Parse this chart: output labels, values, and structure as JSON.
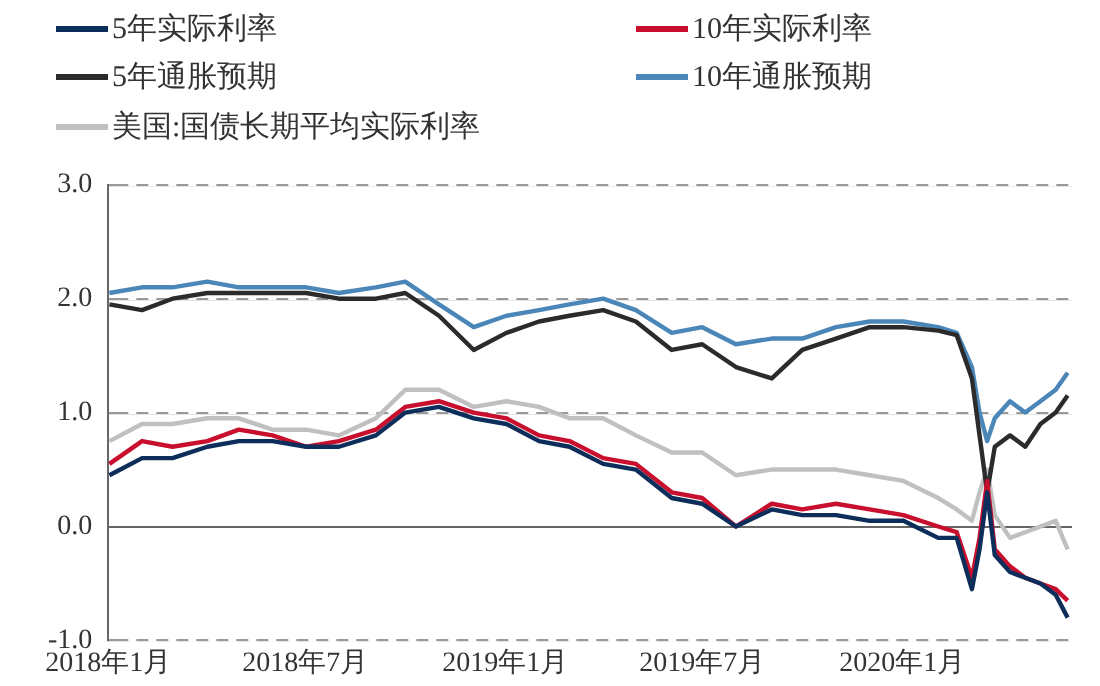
{
  "chart_data": {
    "type": "line",
    "legend": "top",
    "grid": "y",
    "marker": "none",
    "line_style": "solid",
    "x": [
      "2018-01-02",
      "2018-02-01",
      "2018-03-01",
      "2018-04-02",
      "2018-05-01",
      "2018-06-01",
      "2018-07-02",
      "2018-08-01",
      "2018-09-04",
      "2018-10-01",
      "2018-11-01",
      "2018-12-03",
      "2019-01-02",
      "2019-02-01",
      "2019-03-01",
      "2019-04-01",
      "2019-05-01",
      "2019-06-03",
      "2019-07-01",
      "2019-08-01",
      "2019-09-03",
      "2019-10-01",
      "2019-11-01",
      "2019-12-02",
      "2020-01-02",
      "2020-02-03",
      "2020-02-20",
      "2020-03-05",
      "2020-03-12",
      "2020-03-19",
      "2020-03-26",
      "2020-04-09",
      "2020-04-23",
      "2020-05-07",
      "2020-05-21",
      "2020-06-01"
    ],
    "xlim": [
      "2018-01-01",
      "2020-06-05"
    ],
    "xticks": [
      {
        "value": "2018-01-01",
        "label": "2018年1月"
      },
      {
        "value": "2018-07-01",
        "label": "2018年7月"
      },
      {
        "value": "2019-01-01",
        "label": "2019年1月"
      },
      {
        "value": "2019-07-01",
        "label": "2019年7月"
      },
      {
        "value": "2020-01-01",
        "label": "2020年1月"
      }
    ],
    "ylim": [
      -1,
      3
    ],
    "yticks": [
      {
        "value": -1,
        "label": "-1.0"
      },
      {
        "value": 0,
        "label": "0.0"
      },
      {
        "value": 1,
        "label": "1.0"
      },
      {
        "value": 2,
        "label": "2.0"
      },
      {
        "value": 3,
        "label": "3.0"
      }
    ],
    "series": [
      {
        "name": "5年实际利率",
        "color": "#0d2e5a",
        "values": [
          0.45,
          0.6,
          0.6,
          0.7,
          0.75,
          0.75,
          0.7,
          0.7,
          0.8,
          1.0,
          1.05,
          0.95,
          0.9,
          0.75,
          0.7,
          0.55,
          0.5,
          0.25,
          0.2,
          0,
          0.15,
          0.1,
          0.1,
          0.05,
          0.05,
          -0.1,
          -0.1,
          -0.55,
          -0.2,
          0.3,
          -0.25,
          -0.4,
          -0.45,
          -0.5,
          -0.6,
          -0.8
        ]
      },
      {
        "name": "10年实际利率",
        "color": "#c8102e",
        "values": [
          0.55,
          0.75,
          0.7,
          0.75,
          0.85,
          0.8,
          0.7,
          0.75,
          0.85,
          1.05,
          1.1,
          1.0,
          0.95,
          0.8,
          0.75,
          0.6,
          0.55,
          0.3,
          0.25,
          0,
          0.2,
          0.15,
          0.2,
          0.15,
          0.1,
          0,
          -0.05,
          -0.45,
          -0.1,
          0.4,
          -0.2,
          -0.35,
          -0.45,
          -0.5,
          -0.55,
          -0.65
        ]
      },
      {
        "name": "5年通胀预期",
        "color": "#2b2b2b",
        "values": [
          1.95,
          1.9,
          2.0,
          2.05,
          2.05,
          2.05,
          2.05,
          2.0,
          2.0,
          2.05,
          1.85,
          1.55,
          1.7,
          1.8,
          1.85,
          1.9,
          1.8,
          1.55,
          1.6,
          1.4,
          1.3,
          1.55,
          1.65,
          1.75,
          1.75,
          1.72,
          1.68,
          1.3,
          0.8,
          0.3,
          0.7,
          0.8,
          0.7,
          0.9,
          1.0,
          1.15
        ]
      },
      {
        "name": "10年通胀预期",
        "color": "#4a86b8",
        "values": [
          2.05,
          2.1,
          2.1,
          2.15,
          2.1,
          2.1,
          2.1,
          2.05,
          2.1,
          2.15,
          1.95,
          1.75,
          1.85,
          1.9,
          1.95,
          2.0,
          1.9,
          1.7,
          1.75,
          1.6,
          1.65,
          1.65,
          1.75,
          1.8,
          1.8,
          1.75,
          1.7,
          1.4,
          1.0,
          0.75,
          0.95,
          1.1,
          1.0,
          1.1,
          1.2,
          1.35
        ]
      },
      {
        "name": "美国:国债长期平均实际利率",
        "color": "#c0c0c0",
        "values": [
          0.75,
          0.9,
          0.9,
          0.95,
          0.95,
          0.85,
          0.85,
          0.8,
          0.95,
          1.2,
          1.2,
          1.05,
          1.1,
          1.05,
          0.95,
          0.95,
          0.8,
          0.65,
          0.65,
          0.45,
          0.5,
          0.5,
          0.5,
          0.45,
          0.4,
          0.25,
          0.15,
          0.05,
          0.3,
          0.5,
          0.1,
          -0.1,
          -0.05,
          0,
          0.05,
          -0.2
        ]
      }
    ]
  }
}
